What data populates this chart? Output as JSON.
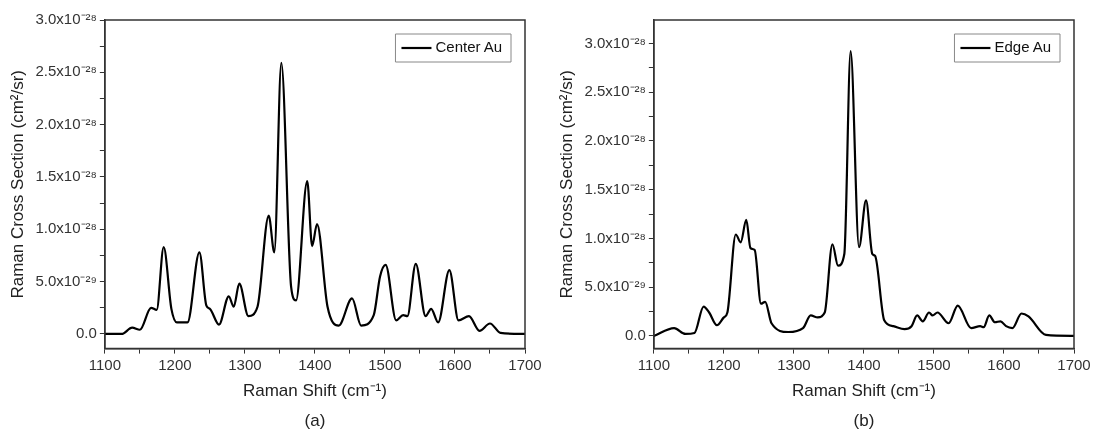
{
  "chart_data": [
    {
      "type": "line",
      "xlabel": "Raman Shift (cm⁻¹)",
      "ylabel": "Raman Cross Section (cm²/sr)",
      "annotations": [
        "(a)"
      ],
      "legend": "top right",
      "grid": false,
      "marker": "none",
      "line_style": "solid",
      "xlim": [
        1100,
        1700
      ],
      "xticks": [
        1100,
        {
          "value": 1150,
          "label": null
        },
        1200,
        {
          "value": 1250,
          "label": null
        },
        1300,
        {
          "value": 1350,
          "label": null
        },
        1400,
        {
          "value": 1450,
          "label": null
        },
        1500,
        {
          "value": 1550,
          "label": null
        },
        1600,
        {
          "value": 1650,
          "label": null
        },
        1700
      ],
      "ylim": [
        -1.4e-29,
        3e-28
      ],
      "yticks": [
        {
          "value": 0,
          "label": "0.0"
        },
        {
          "value": 2.5e-29,
          "label": null
        },
        {
          "value": 5e-29,
          "label": "5.0x10⁻²⁹"
        },
        {
          "value": 7.5e-29,
          "label": null
        },
        {
          "value": 1e-28,
          "label": "1.0x10⁻²⁸"
        },
        {
          "value": 1.25e-28,
          "label": null
        },
        {
          "value": 1.5e-28,
          "label": "1.5x10⁻²⁸"
        },
        {
          "value": 1.75e-28,
          "label": null
        },
        {
          "value": 2e-28,
          "label": "2.0x10⁻²⁸"
        },
        {
          "value": 2.25e-28,
          "label": null
        },
        {
          "value": 2.5e-28,
          "label": "2.5x10⁻²⁸"
        },
        {
          "value": 2.75e-28,
          "label": null
        },
        {
          "value": 3e-28,
          "label": "3.0x10⁻²⁸"
        }
      ],
      "x": [
        1100,
        1124,
        1139,
        1150,
        1166,
        1174,
        1184,
        1195,
        1203,
        1218,
        1235,
        1245,
        1250,
        1263,
        1277,
        1284,
        1292,
        1305,
        1318,
        1334,
        1342,
        1352,
        1366,
        1373,
        1389,
        1396,
        1403,
        1418,
        1434,
        1453,
        1466,
        1484,
        1493,
        1501,
        1516,
        1526,
        1532,
        1544,
        1558,
        1566,
        1576,
        1592,
        1605,
        1620,
        1635,
        1650,
        1665,
        1700
      ],
      "series": [
        {
          "name": "Center Au",
          "color": "#000000",
          "values": [
            0,
            0,
            6e-30,
            4e-30,
            2.5e-29,
            2.3e-29,
            8.3e-29,
            2.4e-29,
            1.1e-29,
            1.1e-29,
            7.8e-29,
            2.7e-29,
            2.4e-29,
            9e-30,
            3.6e-29,
            2.6e-29,
            4.8e-29,
            1.7e-29,
            2.6e-29,
            1.13e-28,
            7.8e-29,
            2.59e-28,
            4.5e-29,
            3.2e-29,
            1.46e-28,
            8.4e-29,
            1.05e-28,
            2.6e-29,
            8e-30,
            3.4e-29,
            8e-30,
            1.8e-29,
            5.5e-29,
            6.6e-29,
            1.3e-29,
            1.8e-29,
            1.7e-29,
            6.7e-29,
            1.7e-29,
            2.4e-29,
            1.1e-29,
            6.1e-29,
            1.3e-29,
            1.7e-29,
            3e-30,
            1e-29,
            1e-30,
            0
          ]
        }
      ]
    },
    {
      "type": "line",
      "xlabel": "Raman Shift (cm⁻¹)",
      "ylabel": "Raman Cross Section (cm²/sr)",
      "annotations": [
        "(b)"
      ],
      "legend": "top right",
      "grid": false,
      "marker": "none",
      "line_style": "solid",
      "xlim": [
        1100,
        1700
      ],
      "xticks": [
        1100,
        {
          "value": 1150,
          "label": null
        },
        1200,
        {
          "value": 1250,
          "label": null
        },
        1300,
        {
          "value": 1350,
          "label": null
        },
        1400,
        {
          "value": 1450,
          "label": null
        },
        1500,
        {
          "value": 1550,
          "label": null
        },
        1600,
        {
          "value": 1650,
          "label": null
        },
        1700
      ],
      "ylim": [
        -1.3e-29,
        3.24e-28
      ],
      "yticks": [
        {
          "value": 0,
          "label": "0.0"
        },
        {
          "value": 2.5e-29,
          "label": null
        },
        {
          "value": 5e-29,
          "label": "5.0x10⁻²⁹"
        },
        {
          "value": 7.5e-29,
          "label": null
        },
        {
          "value": 1e-28,
          "label": "1.0x10⁻²⁸"
        },
        {
          "value": 1.25e-28,
          "label": null
        },
        {
          "value": 1.5e-28,
          "label": "1.5x10⁻²⁸"
        },
        {
          "value": 1.75e-28,
          "label": null
        },
        {
          "value": 2e-28,
          "label": "2.0x10⁻²⁸"
        },
        {
          "value": 2.25e-28,
          "label": null
        },
        {
          "value": 2.5e-28,
          "label": "2.5x10⁻²⁸"
        },
        {
          "value": 2.75e-28,
          "label": null
        },
        {
          "value": 3e-28,
          "label": "3.0x10⁻²⁸"
        }
      ],
      "x": [
        1100,
        1129,
        1145,
        1158,
        1171,
        1179,
        1190,
        1200,
        1205,
        1217,
        1224,
        1232,
        1238,
        1244,
        1253,
        1259,
        1268,
        1292,
        1313,
        1324,
        1334,
        1344,
        1355,
        1363,
        1372,
        1381,
        1393,
        1403,
        1412,
        1416,
        1429,
        1442,
        1458,
        1468,
        1476,
        1484,
        1493,
        1498,
        1505,
        1521,
        1534,
        1553,
        1566,
        1571,
        1579,
        1587,
        1595,
        1603,
        1612,
        1625,
        1635,
        1660,
        1700
      ],
      "series": [
        {
          "name": "Edge Au",
          "color": "#000000",
          "values": [
            0,
            8e-30,
            2e-30,
            3e-30,
            3e-29,
            2.4e-29,
            1.1e-29,
            1.9e-29,
            2.4e-29,
            1.04e-28,
            9.6e-29,
            1.19e-28,
            9e-29,
            8.8e-29,
            3.3e-29,
            3.5e-29,
            1.3e-29,
            4e-30,
            8e-30,
            2.1e-29,
            1.9e-29,
            2.4e-29,
            9.4e-29,
            7.2e-29,
            8.4e-29,
            2.92e-28,
            9.1e-29,
            1.39e-28,
            8.4e-29,
            8.2e-29,
            1.6e-29,
            1e-29,
            7e-30,
            1e-29,
            2.1e-29,
            1.5e-29,
            2.4e-29,
            2.1e-29,
            2.4e-29,
            1.3e-29,
            3.1e-29,
            8e-30,
            1e-29,
            9e-30,
            2.1e-29,
            1.4e-29,
            1.5e-29,
            1e-29,
            8e-30,
            2.3e-29,
            2e-29,
            1e-30,
            0
          ]
        }
      ]
    }
  ]
}
